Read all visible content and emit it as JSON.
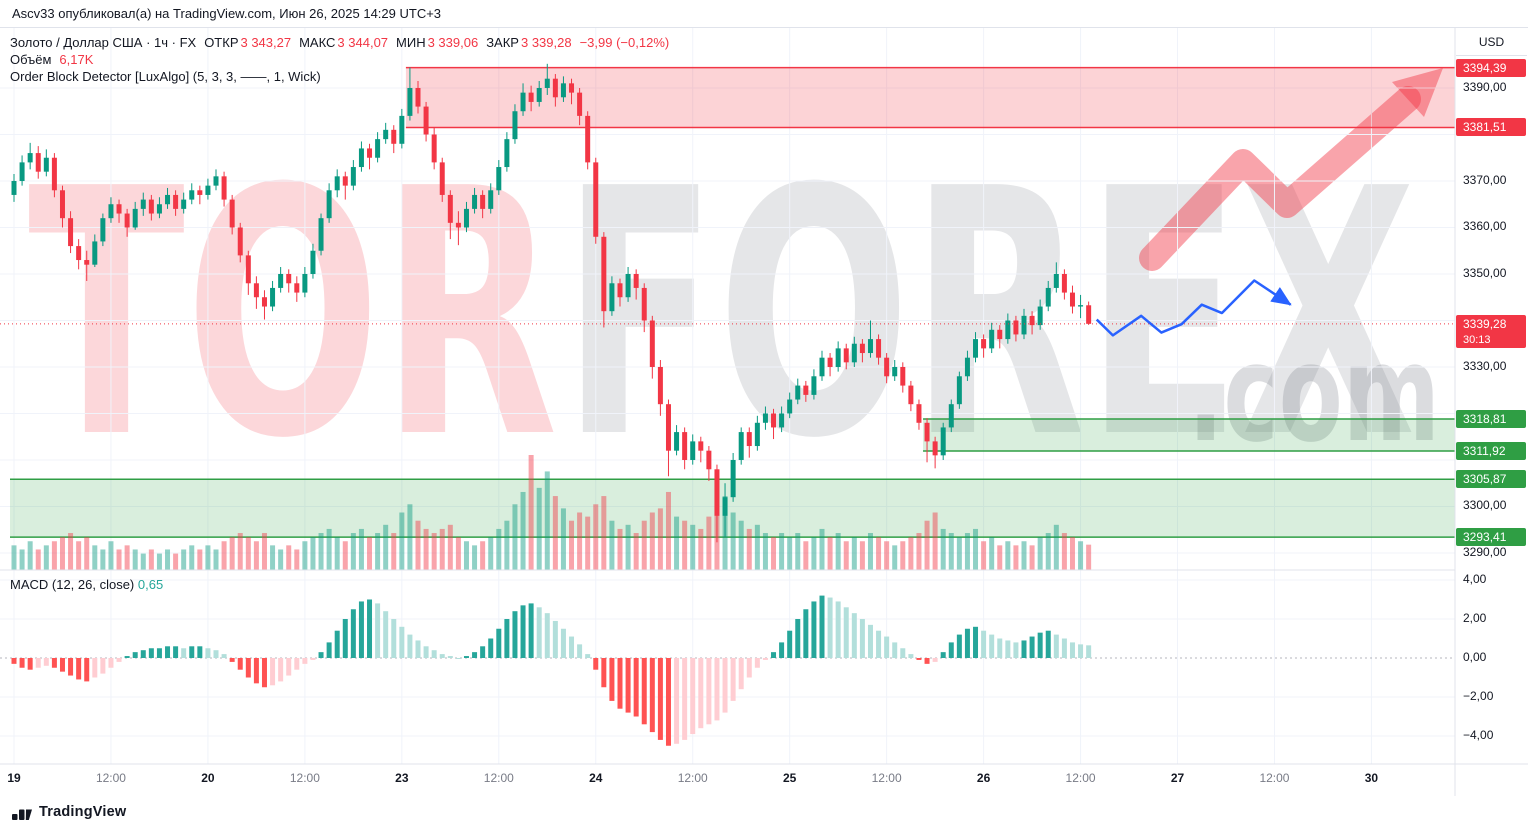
{
  "top_bar": {
    "text": "Ascv33 опубликовал(а) на TradingView.com, Июн 26, 2025 14:29 UTC+3"
  },
  "legend": {
    "symbol": "Золото / Доллар США · 1ч · FX",
    "ohlc": [
      {
        "label": "ОТКР",
        "value": "3 343,27"
      },
      {
        "label": "МАКС",
        "value": "3 344,07"
      },
      {
        "label": "МИН",
        "value": "3 339,06"
      },
      {
        "label": "ЗАКР",
        "value": "3 339,28"
      }
    ],
    "change": "−3,99 (−0,12%)",
    "volume_label": "Объём",
    "volume_value": "6,17K",
    "indicator": "Order Block Detector [LuxAlgo] (5, 3, 3, ——, 1, Wick)",
    "macd_label": "MACD (12, 26, close)",
    "macd_value": "0,65"
  },
  "watermark": {
    "part1": "TOR",
    "part2": "FOREX",
    "part3": ".com"
  },
  "price_scale": {
    "currency": "USD",
    "ticks": [
      {
        "label": "3390,00",
        "price": 3390
      },
      {
        "label": "3370,00",
        "price": 3370
      },
      {
        "label": "3360,00",
        "price": 3360
      },
      {
        "label": "3350,00",
        "price": 3350
      },
      {
        "label": "3330,00",
        "price": 3330
      },
      {
        "label": "3300,00",
        "price": 3300
      },
      {
        "label": "3290,00",
        "price": 3290
      }
    ],
    "badges": [
      {
        "label": "3394,39",
        "price": 3394.39,
        "bg": "#f23645"
      },
      {
        "label": "3381,51",
        "price": 3381.51,
        "bg": "#f23645"
      },
      {
        "label": "3339,28",
        "price": 3339.28,
        "bg": "#f23645",
        "countdown": "30:13"
      },
      {
        "label": "3318,81",
        "price": 3318.81,
        "bg": "#2f9e44"
      },
      {
        "label": "3311,92",
        "price": 3311.92,
        "bg": "#2f9e44"
      },
      {
        "label": "3305,87",
        "price": 3305.87,
        "bg": "#2f9e44"
      },
      {
        "label": "3293,41",
        "price": 3293.41,
        "bg": "#2f9e44"
      }
    ],
    "macd_ticks": [
      {
        "label": "4,00",
        "value": 4
      },
      {
        "label": "2,00",
        "value": 2
      },
      {
        "label": "0,00",
        "value": 0
      },
      {
        "label": "−2,00",
        "value": -2
      },
      {
        "label": "−4,00",
        "value": -4
      }
    ]
  },
  "time_scale": {
    "labels": [
      {
        "i": 0,
        "text": "19",
        "major": true
      },
      {
        "i": 12,
        "text": "12:00",
        "major": false
      },
      {
        "i": 24,
        "text": "20",
        "major": true
      },
      {
        "i": 36,
        "text": "12:00",
        "major": false
      },
      {
        "i": 48,
        "text": "23",
        "major": true
      },
      {
        "i": 60,
        "text": "12:00",
        "major": false
      },
      {
        "i": 72,
        "text": "24",
        "major": true
      },
      {
        "i": 84,
        "text": "12:00",
        "major": false
      },
      {
        "i": 96,
        "text": "25",
        "major": true
      },
      {
        "i": 108,
        "text": "12:00",
        "major": false
      },
      {
        "i": 120,
        "text": "26",
        "major": true
      },
      {
        "i": 132,
        "text": "12:00",
        "major": false
      },
      {
        "i": 144,
        "text": "27",
        "major": true
      },
      {
        "i": 156,
        "text": "12:00",
        "major": false
      },
      {
        "i": 168,
        "text": "30",
        "major": true
      }
    ]
  },
  "footer": {
    "brand": "TradingView"
  },
  "colors": {
    "up": "#089981",
    "down": "#f23645",
    "volume_up": "rgba(8,153,129,0.45)",
    "volume_down": "rgba(242,54,69,0.45)",
    "macd_pos_rise": "#26a69a",
    "macd_pos_fall": "#b2dfdb",
    "macd_neg_fall": "#ff5252",
    "macd_neg_rise": "#ffcdd2",
    "drawing_blue": "#2962ff",
    "grid": "#f0f3fa",
    "zone_red": "#f23645",
    "zone_green": "#2f9e44"
  },
  "chart_data": {
    "type": "candlestick+volume+macd",
    "title": "Золото / Доллар США",
    "interval": "1ч",
    "exchange": "FX",
    "last_price": 3339.28,
    "last_change": -3.99,
    "last_change_pct": -0.12,
    "price_range": [
      3286.3,
      3402.9
    ],
    "price_gridlines": [
      3390,
      3380,
      3370,
      3360,
      3350,
      3340,
      3330,
      3320,
      3310,
      3300,
      3290
    ],
    "macd_gridlines": [
      4,
      2,
      0,
      -2,
      -4
    ],
    "candles": [
      [
        3367,
        3371.5,
        3365.5,
        3370
      ],
      [
        3370,
        3375.5,
        3369,
        3374
      ],
      [
        3374,
        3378.2,
        3372.5,
        3376
      ],
      [
        3376,
        3377.5,
        3370.5,
        3372
      ],
      [
        3372,
        3376.8,
        3371,
        3375
      ],
      [
        3375,
        3376,
        3366.5,
        3368
      ],
      [
        3368,
        3369,
        3360,
        3362
      ],
      [
        3362,
        3363.5,
        3354.5,
        3356
      ],
      [
        3356,
        3357.5,
        3351,
        3353
      ],
      [
        3353,
        3355,
        3348.5,
        3352
      ],
      [
        3352,
        3358.5,
        3351.5,
        3357
      ],
      [
        3357,
        3363,
        3356,
        3362
      ],
      [
        3362,
        3366.5,
        3361,
        3365
      ],
      [
        3365,
        3366,
        3361,
        3363
      ],
      [
        3363,
        3364,
        3358,
        3360
      ],
      [
        3360,
        3365.5,
        3359.5,
        3364
      ],
      [
        3364,
        3367.5,
        3362.5,
        3366
      ],
      [
        3366,
        3367,
        3361.5,
        3363
      ],
      [
        3363,
        3366.5,
        3362,
        3365
      ],
      [
        3365,
        3368.5,
        3364,
        3367
      ],
      [
        3367,
        3368,
        3362.5,
        3364
      ],
      [
        3364,
        3367.5,
        3363,
        3366
      ],
      [
        3366,
        3369.5,
        3365,
        3368
      ],
      [
        3368,
        3369,
        3365,
        3367
      ],
      [
        3367,
        3370.5,
        3366,
        3369
      ],
      [
        3369,
        3372.5,
        3368,
        3371
      ],
      [
        3371,
        3372,
        3364.5,
        3366
      ],
      [
        3366,
        3367,
        3358.5,
        3360
      ],
      [
        3360,
        3361,
        3352.5,
        3354
      ],
      [
        3354,
        3355,
        3345.5,
        3348
      ],
      [
        3348,
        3349.5,
        3342.5,
        3345
      ],
      [
        3345,
        3346.5,
        3340.2,
        3343
      ],
      [
        3343,
        3348.5,
        3342,
        3347
      ],
      [
        3347,
        3351.5,
        3346,
        3350
      ],
      [
        3350,
        3351,
        3346,
        3348
      ],
      [
        3348,
        3349.5,
        3344,
        3346
      ],
      [
        3346,
        3351.5,
        3345,
        3350
      ],
      [
        3350,
        3356.5,
        3349,
        3355
      ],
      [
        3355,
        3363,
        3354,
        3362
      ],
      [
        3362,
        3369.5,
        3361,
        3368
      ],
      [
        3368,
        3372.5,
        3366.5,
        3371
      ],
      [
        3371,
        3372,
        3366,
        3369
      ],
      [
        3369,
        3374.5,
        3368,
        3373
      ],
      [
        3373,
        3378.5,
        3372,
        3377
      ],
      [
        3377,
        3378,
        3372.5,
        3375
      ],
      [
        3375,
        3380.5,
        3374,
        3379
      ],
      [
        3379,
        3382.5,
        3378,
        3381
      ],
      [
        3381,
        3382,
        3376,
        3378
      ],
      [
        3378,
        3385.5,
        3377,
        3384
      ],
      [
        3384,
        3394.4,
        3383,
        3390
      ],
      [
        3390,
        3391.5,
        3384.5,
        3386
      ],
      [
        3386,
        3387,
        3378.5,
        3380
      ],
      [
        3380,
        3381.5,
        3372.5,
        3374
      ],
      [
        3374,
        3375,
        3365.5,
        3367
      ],
      [
        3367,
        3368,
        3357.5,
        3361
      ],
      [
        3361,
        3363.5,
        3356.2,
        3360
      ],
      [
        3360,
        3365.5,
        3359,
        3364
      ],
      [
        3364,
        3368.5,
        3363,
        3367
      ],
      [
        3367,
        3368,
        3362,
        3364
      ],
      [
        3364,
        3369.5,
        3363,
        3368
      ],
      [
        3368,
        3374.5,
        3367,
        3373
      ],
      [
        3373,
        3380.5,
        3372,
        3379
      ],
      [
        3379,
        3386.5,
        3378,
        3385
      ],
      [
        3385,
        3391,
        3384,
        3389
      ],
      [
        3389,
        3390.5,
        3385,
        3387
      ],
      [
        3387,
        3391.5,
        3386,
        3390
      ],
      [
        3390,
        3395.2,
        3388.5,
        3392
      ],
      [
        3392,
        3393,
        3386,
        3388
      ],
      [
        3388,
        3392.5,
        3387,
        3391
      ],
      [
        3391,
        3392,
        3386.5,
        3389
      ],
      [
        3389,
        3390,
        3382,
        3384
      ],
      [
        3384,
        3385,
        3372.5,
        3374
      ],
      [
        3374,
        3375,
        3356.5,
        3358
      ],
      [
        3358,
        3359,
        3338.5,
        3342
      ],
      [
        3342,
        3349.5,
        3341,
        3348
      ],
      [
        3348,
        3349,
        3343,
        3345
      ],
      [
        3345,
        3351.5,
        3344,
        3350
      ],
      [
        3350,
        3351,
        3344.5,
        3347
      ],
      [
        3347,
        3348,
        3337.5,
        3340
      ],
      [
        3340,
        3341,
        3327.5,
        3330
      ],
      [
        3330,
        3331.5,
        3319.5,
        3322
      ],
      [
        3322,
        3323,
        3306.5,
        3312
      ],
      [
        3312,
        3317.5,
        3311,
        3316
      ],
      [
        3316,
        3317,
        3308,
        3310
      ],
      [
        3310,
        3315.5,
        3309,
        3314
      ],
      [
        3314,
        3315,
        3309.5,
        3312
      ],
      [
        3312,
        3313,
        3305.5,
        3308
      ],
      [
        3308,
        3309,
        3292.3,
        3298
      ],
      [
        3298,
        3305,
        3293.5,
        3302
      ],
      [
        3302,
        3311.5,
        3301,
        3310
      ],
      [
        3310,
        3317,
        3309,
        3316
      ],
      [
        3316,
        3317,
        3310.5,
        3313
      ],
      [
        3313,
        3319.5,
        3312,
        3318
      ],
      [
        3318,
        3321.5,
        3316.5,
        3320
      ],
      [
        3320,
        3321,
        3314.5,
        3317
      ],
      [
        3317,
        3321.5,
        3316,
        3320
      ],
      [
        3320,
        3324.5,
        3319,
        3323
      ],
      [
        3323,
        3327.5,
        3322,
        3326
      ],
      [
        3326,
        3327,
        3322.5,
        3324
      ],
      [
        3324,
        3329.5,
        3323,
        3328
      ],
      [
        3328,
        3333.5,
        3327,
        3332
      ],
      [
        3332,
        3333,
        3328,
        3330
      ],
      [
        3330,
        3335.5,
        3329,
        3334
      ],
      [
        3334,
        3335,
        3329.5,
        3331
      ],
      [
        3331,
        3336.5,
        3330,
        3335
      ],
      [
        3335,
        3336,
        3331,
        3333
      ],
      [
        3333,
        3340,
        3332,
        3336
      ],
      [
        3336,
        3337,
        3330.5,
        3332
      ],
      [
        3332,
        3333,
        3326.5,
        3328
      ],
      [
        3328,
        3331.5,
        3327,
        3330
      ],
      [
        3330,
        3331,
        3324.5,
        3326
      ],
      [
        3326,
        3327,
        3320.5,
        3322
      ],
      [
        3322,
        3323,
        3316.5,
        3318
      ],
      [
        3318,
        3319,
        3309.5,
        3314
      ],
      [
        3314,
        3315,
        3308.2,
        3311
      ],
      [
        3311,
        3318,
        3310,
        3317
      ],
      [
        3317,
        3323,
        3316,
        3322
      ],
      [
        3322,
        3329,
        3321,
        3328
      ],
      [
        3328,
        3333.5,
        3327,
        3332
      ],
      [
        3332,
        3337.5,
        3331,
        3336
      ],
      [
        3336,
        3337,
        3332,
        3334
      ],
      [
        3334,
        3339.5,
        3333,
        3338
      ],
      [
        3338,
        3339,
        3334,
        3336
      ],
      [
        3336,
        3341.5,
        3335,
        3340
      ],
      [
        3340,
        3341,
        3335.5,
        3337
      ],
      [
        3337,
        3342.5,
        3336,
        3341
      ],
      [
        3341,
        3342,
        3337,
        3339
      ],
      [
        3339,
        3344.5,
        3338,
        3343
      ],
      [
        3343,
        3348.5,
        3342,
        3347
      ],
      [
        3347,
        3352.5,
        3346,
        3350
      ],
      [
        3350,
        3351,
        3344.5,
        3346
      ],
      [
        3346,
        3347.5,
        3341.5,
        3343
      ],
      [
        3343,
        3345.5,
        3340.5,
        3343.3
      ],
      [
        3343.27,
        3344.07,
        3339.06,
        3339.28
      ]
    ],
    "volumes": [
      6,
      5,
      7,
      5,
      6,
      7,
      8,
      9,
      7,
      8,
      6,
      5,
      7,
      5,
      6,
      5,
      4,
      5,
      4,
      5,
      4,
      5,
      6,
      5,
      6,
      5,
      7,
      8,
      9,
      8,
      7,
      9,
      6,
      5,
      6,
      5,
      7,
      8,
      9,
      10,
      8,
      7,
      9,
      10,
      8,
      9,
      11,
      9,
      14,
      16,
      12,
      10,
      9,
      10,
      11,
      8,
      7,
      6,
      7,
      8,
      10,
      12,
      16,
      19,
      28,
      20,
      24,
      18,
      15,
      12,
      14,
      13,
      16,
      18,
      12,
      10,
      11,
      9,
      12,
      14,
      15,
      19,
      13,
      12,
      11,
      10,
      13,
      22,
      18,
      14,
      12,
      10,
      11,
      9,
      8,
      9,
      8,
      9,
      7,
      8,
      10,
      8,
      9,
      7,
      8,
      7,
      9,
      8,
      7,
      6,
      7,
      8,
      9,
      12,
      14,
      10,
      9,
      8,
      9,
      10,
      7,
      8,
      6,
      7,
      6,
      7,
      6,
      8,
      9,
      11,
      9,
      8,
      7,
      6.17
    ],
    "macd_histogram": [
      -0.3,
      -0.5,
      -0.6,
      -0.5,
      -0.4,
      -0.5,
      -0.7,
      -0.9,
      -1.1,
      -1.2,
      -1.0,
      -0.8,
      -0.5,
      -0.2,
      0.1,
      0.3,
      0.4,
      0.5,
      0.5,
      0.6,
      0.6,
      0.5,
      0.6,
      0.6,
      0.5,
      0.4,
      0.2,
      -0.2,
      -0.6,
      -1.0,
      -1.3,
      -1.5,
      -1.4,
      -1.2,
      -0.9,
      -0.6,
      -0.3,
      -0.1,
      0.3,
      0.8,
      1.4,
      2.0,
      2.5,
      2.9,
      3.0,
      2.8,
      2.4,
      2.0,
      1.6,
      1.2,
      0.9,
      0.6,
      0.4,
      0.2,
      0.1,
      0.0,
      0.1,
      0.3,
      0.6,
      1.0,
      1.5,
      2.0,
      2.4,
      2.7,
      2.8,
      2.6,
      2.3,
      1.9,
      1.5,
      1.1,
      0.7,
      0.2,
      -0.6,
      -1.5,
      -2.2,
      -2.6,
      -2.8,
      -3.0,
      -3.4,
      -3.8,
      -4.2,
      -4.5,
      -4.4,
      -4.2,
      -3.9,
      -3.6,
      -3.4,
      -3.2,
      -2.8,
      -2.2,
      -1.6,
      -1.0,
      -0.5,
      -0.1,
      0.3,
      0.8,
      1.4,
      2.0,
      2.5,
      2.9,
      3.2,
      3.1,
      2.9,
      2.6,
      2.3,
      2.0,
      1.7,
      1.4,
      1.1,
      0.8,
      0.5,
      0.2,
      -0.1,
      -0.3,
      -0.2,
      0.3,
      0.8,
      1.2,
      1.5,
      1.6,
      1.4,
      1.2,
      1.0,
      0.9,
      0.8,
      0.9,
      1.1,
      1.3,
      1.4,
      1.2,
      1.0,
      0.8,
      0.7,
      0.65
    ],
    "zones": [
      {
        "kind": "bearish-order-block",
        "top": 3394.39,
        "bottom": 3381.51,
        "start_index": 49,
        "color": "#f23645",
        "fill": "rgba(242,54,69,0.22)"
      },
      {
        "kind": "bullish-order-block",
        "top": 3318.81,
        "bottom": 3311.92,
        "start_index": 113,
        "color": "#2f9e44",
        "fill": "rgba(47,158,68,0.18)"
      },
      {
        "kind": "bullish-order-block",
        "top": 3305.87,
        "bottom": 3293.41,
        "start_index": 0,
        "color": "#2f9e44",
        "fill": "rgba(47,158,68,0.18)"
      }
    ],
    "forecast_arrow": {
      "color": "#2962ff",
      "points": [
        [
          134,
          3340.2
        ],
        [
          136,
          3336.8
        ],
        [
          139.5,
          3341
        ],
        [
          142,
          3337.4
        ],
        [
          144.5,
          3339.2
        ],
        [
          147,
          3343.4
        ],
        [
          149.5,
          3341.6
        ],
        [
          153.5,
          3348.6
        ],
        [
          158,
          3343.4
        ]
      ]
    }
  }
}
